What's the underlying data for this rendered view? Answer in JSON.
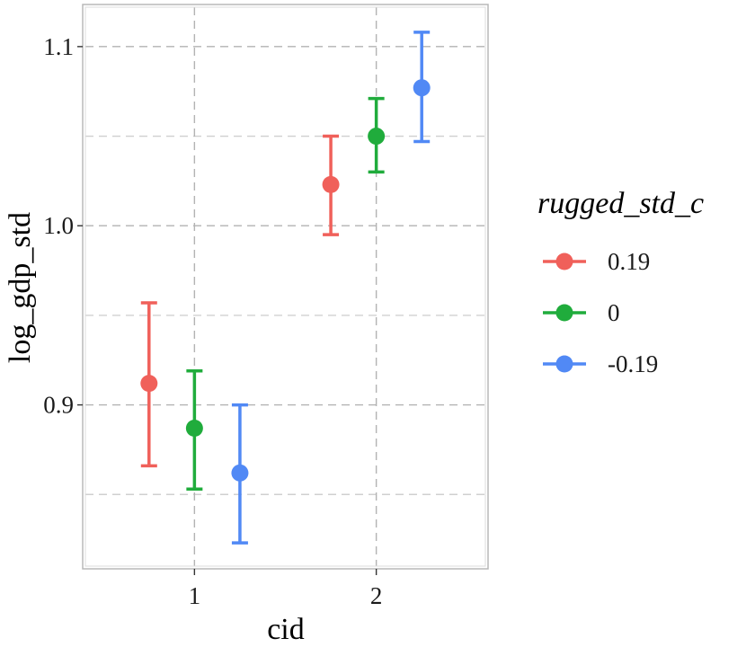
{
  "chart_data": {
    "type": "scatter",
    "title": "",
    "xlabel": "cid",
    "ylabel": "log_gdp_std",
    "categories": [
      "1",
      "2"
    ],
    "xlim": [
      0.4,
      2.6
    ],
    "ylim": [
      0.81,
      1.122
    ],
    "y_major_ticks": [
      0.9,
      1.0,
      1.1
    ],
    "y_tick_labels": [
      "0.9",
      "1.0",
      "1.1"
    ],
    "y_minor_ticks": [
      0.85,
      0.95,
      1.05
    ],
    "grid": true,
    "legend": {
      "title": "rugged_std_c",
      "position": "right"
    },
    "series": [
      {
        "name": "0.19",
        "color": "#f0605a",
        "points": [
          {
            "x": "1",
            "y": 0.912,
            "ymin": 0.866,
            "ymax": 0.957
          },
          {
            "x": "2",
            "y": 1.023,
            "ymin": 0.995,
            "ymax": 1.05
          }
        ]
      },
      {
        "name": "0",
        "color": "#20ac3c",
        "points": [
          {
            "x": "1",
            "y": 0.887,
            "ymin": 0.853,
            "ymax": 0.919
          },
          {
            "x": "2",
            "y": 1.05,
            "ymin": 1.03,
            "ymax": 1.071
          }
        ]
      },
      {
        "name": "-0.19",
        "color": "#5189f5",
        "points": [
          {
            "x": "1",
            "y": 0.862,
            "ymin": 0.823,
            "ymax": 0.9
          },
          {
            "x": "2",
            "y": 1.077,
            "ymin": 1.047,
            "ymax": 1.108
          }
        ]
      }
    ]
  }
}
